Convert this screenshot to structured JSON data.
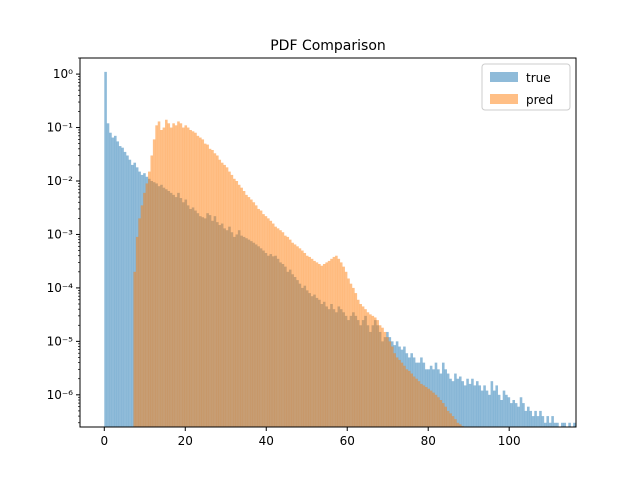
{
  "chart_data": {
    "type": "histogram",
    "title": "PDF Comparison",
    "xlabel": "",
    "ylabel": "",
    "yscale": "log",
    "xlim": [
      -6,
      116.5
    ],
    "ylim": [
      2.5e-07,
      2.0
    ],
    "x_ticks": [
      0,
      20,
      40,
      60,
      80,
      100
    ],
    "y_ticks": [
      {
        "value": 1e-06,
        "label": "10⁻⁶"
      },
      {
        "value": 1e-05,
        "label": "10⁻⁵"
      },
      {
        "value": 0.0001,
        "label": "10⁻⁴"
      },
      {
        "value": 0.001,
        "label": "10⁻³"
      },
      {
        "value": 0.01,
        "label": "10⁻²"
      },
      {
        "value": 0.1,
        "label": "10⁻¹"
      },
      {
        "value": 1,
        "label": "10⁰"
      }
    ],
    "grid": false,
    "legend_position": "top-right",
    "series": [
      {
        "name": "true",
        "color": "#1f77b4",
        "alpha": 0.5,
        "bin_edges_start": 0,
        "bin_width": 0.6,
        "values": [
          1.1,
          0.12,
          0.08,
          0.065,
          0.07,
          0.055,
          0.045,
          0.042,
          0.035,
          0.03,
          0.025,
          0.02,
          0.022,
          0.018,
          0.015,
          0.013,
          0.014,
          0.012,
          0.011,
          0.01,
          0.0095,
          0.009,
          0.008,
          0.0085,
          0.0075,
          0.007,
          0.0065,
          0.006,
          0.0055,
          0.005,
          0.006,
          0.0048,
          0.004,
          0.0045,
          0.0035,
          0.003,
          0.0032,
          0.0028,
          0.0025,
          0.0022,
          0.0021,
          0.002,
          0.0025,
          0.0023,
          0.0018,
          0.0022,
          0.0017,
          0.0015,
          0.0016,
          0.0013,
          0.0012,
          0.0014,
          0.0011,
          0.0009,
          0.001,
          0.0012,
          0.00095,
          0.0009,
          0.00085,
          0.0008,
          0.00075,
          0.0007,
          0.00065,
          0.0006,
          0.00055,
          0.0005,
          0.00045,
          0.0004,
          0.00043,
          0.00039,
          0.0004,
          0.00035,
          0.0003,
          0.00028,
          0.00025,
          0.0002,
          0.00022,
          0.00018,
          0.00016,
          0.00014,
          0.00012,
          0.0001,
          0.00011,
          9e-05,
          8e-05,
          7e-05,
          7.5e-05,
          6.5e-05,
          6e-05,
          5e-05,
          5.5e-05,
          4.5e-05,
          4e-05,
          5e-05,
          4e-05,
          3.5e-05,
          4.5e-05,
          4e-05,
          3.5e-05,
          3e-05,
          2.5e-05,
          3e-05,
          3.5e-05,
          3e-05,
          2.5e-05,
          2e-05,
          2.5e-05,
          3e-05,
          2e-05,
          1.5e-05,
          2e-05,
          2.5e-05,
          2e-05,
          1.5e-05,
          1e-05,
          1.2e-05,
          1.5e-05,
          1.2e-05,
          1e-05,
          8.5e-06,
          1e-05,
          8e-06,
          7e-06,
          8e-06,
          6e-06,
          5e-06,
          6e-06,
          5e-06,
          4e-06,
          4e-06,
          5e-06,
          4e-06,
          3e-06,
          3e-06,
          3.5e-06,
          3e-06,
          4e-06,
          3e-06,
          2.5e-06,
          4e-06,
          3e-06,
          2.5e-06,
          2e-06,
          1.8e-06,
          2.5e-06,
          2e-06,
          2.2e-06,
          1.8e-06,
          1.5e-06,
          2e-06,
          1.6e-06,
          2e-06,
          1.5e-06,
          1.8e-06,
          1.5e-06,
          1.2e-06,
          1.5e-06,
          1.2e-06,
          1e-06,
          1.8e-06,
          1.2e-06,
          1.5e-06,
          1e-06,
          8e-07,
          1.2e-06,
          1e-06,
          9e-07,
          7e-07,
          8e-07,
          7e-07,
          6e-07,
          9e-07,
          7e-07,
          5e-07,
          6e-07,
          5e-07,
          4e-07,
          5e-07,
          4e-07,
          5e-07,
          4e-07,
          3e-07,
          4e-07,
          3e-07,
          4e-07,
          3e-07,
          3e-07,
          2e-07,
          3e-07,
          3e-07,
          2e-07,
          3e-07,
          2e-07,
          3e-07,
          2e-07,
          4e-07,
          3e-07,
          2e-07,
          3e-07,
          2e-07,
          3e-07,
          2e-07,
          3e-07,
          2e-07,
          3e-07,
          2e-07,
          3e-07,
          2e-07,
          3e-07,
          2e-07,
          3e-07,
          2e-07,
          3e-07,
          2e-07,
          3e-07,
          2e-07,
          3e-07,
          2e-07
        ]
      },
      {
        "name": "pred",
        "color": "#ff7f0e",
        "alpha": 0.5,
        "bin_edges_start": 7.2,
        "bin_width": 0.6,
        "values": [
          0.0002,
          0.0009,
          0.002,
          0.0035,
          0.006,
          0.009,
          0.015,
          0.03,
          0.06,
          0.11,
          0.13,
          0.09,
          0.1,
          0.14,
          0.12,
          0.1,
          0.12,
          0.11,
          0.13,
          0.12,
          0.1,
          0.11,
          0.1,
          0.09,
          0.085,
          0.08,
          0.07,
          0.065,
          0.06,
          0.05,
          0.048,
          0.04,
          0.038,
          0.033,
          0.03,
          0.025,
          0.022,
          0.02,
          0.018,
          0.015,
          0.013,
          0.011,
          0.01,
          0.0085,
          0.0075,
          0.0065,
          0.0055,
          0.005,
          0.0045,
          0.004,
          0.0035,
          0.003,
          0.0028,
          0.0024,
          0.0022,
          0.002,
          0.0018,
          0.0016,
          0.0014,
          0.0013,
          0.0012,
          0.0011,
          0.00095,
          0.0009,
          0.0008,
          0.0007,
          0.00065,
          0.0006,
          0.00055,
          0.0005,
          0.00045,
          0.0004,
          0.00038,
          0.00035,
          0.00032,
          0.0003,
          0.00028,
          0.00026,
          0.00028,
          0.0003,
          0.00032,
          0.00035,
          0.00038,
          0.0004,
          0.00035,
          0.0003,
          0.00025,
          0.0002,
          0.00015,
          0.00012,
          0.0001,
          8e-05,
          6e-05,
          5e-05,
          4.5e-05,
          4e-05,
          3.5e-05,
          3.2e-05,
          3e-05,
          2.8e-05,
          2.5e-05,
          2e-05,
          1.8e-05,
          1.5e-05,
          1.2e-05,
          1e-05,
          8e-06,
          6e-06,
          5e-06,
          4.5e-06,
          4e-06,
          3.5e-06,
          3e-06,
          2.8e-06,
          2.5e-06,
          2.2e-06,
          2e-06,
          1.8e-06,
          1.6e-06,
          1.5e-06,
          1.4e-06,
          1.3e-06,
          1.2e-06,
          1.1e-06,
          1e-06,
          9e-07,
          8e-07,
          7e-07,
          6e-07,
          5e-07,
          4.5e-07,
          4e-07,
          3.5e-07,
          3e-07,
          2.8e-07,
          2.6e-07,
          2.5e-07,
          2.4e-07,
          2.3e-07,
          2.2e-07,
          2.1e-07,
          2e-07,
          1.9e-07,
          1.8e-07,
          1.7e-07,
          1.6e-07,
          1.5e-07,
          1.4e-07
        ]
      }
    ]
  }
}
